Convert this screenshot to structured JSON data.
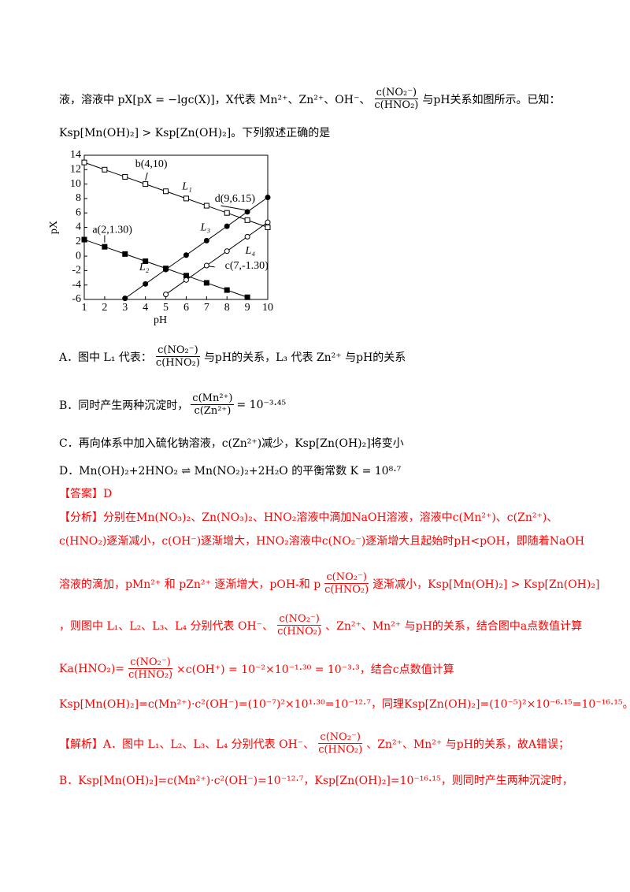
{
  "paragraphs": [
    {
      "color": "black",
      "parts": [
        "液，溶液中 pX[pX = −lgc(X)]，X代表 Mn²⁺、Zn²⁺、OH⁻、",
        {
          "num": "c(NO₂⁻)",
          "den": "c(HNO₂)"
        },
        "与pH关系如图所示。已知："
      ]
    },
    {
      "color": "black",
      "parts": [
        "Ksp[Mn(OH)₂] > Ksp[Zn(OH)₂]。下列叙述正确的是"
      ]
    },
    {
      "color": "black",
      "parts": [
        "A．图中 L₁ 代表：",
        {
          "num": "c(NO₂⁻)",
          "den": "c(HNO₂)"
        },
        "与pH的关系，L₃ 代表 Zn²⁺ 与pH的关系"
      ]
    },
    {
      "color": "black",
      "parts": [
        "B．同时产生两种沉淀时，",
        {
          "num": "c(Mn²⁺)",
          "den": "c(Zn²⁺)"
        },
        "= 10⁻³·⁴⁵"
      ]
    },
    {
      "color": "black",
      "parts": [
        "C．再向体系中加入硫化钠溶液，c(Zn²⁺)减少，Ksp[Zn(OH)₂]将变小"
      ]
    },
    {
      "color": "black",
      "parts": [
        "D．Mn(OH)₂+2HNO₂ ⇌ Mn(NO₂)₂+2H₂O 的平衡常数 K = 10⁸·⁷"
      ]
    },
    {
      "color": "red",
      "parts": [
        "【答案】D"
      ]
    },
    {
      "color": "red",
      "parts": [
        "【分析】分别在Mn(NO₃)₂、Zn(NO₃)₂、HNO₂溶液中滴加NaOH溶液，溶液中c(Mn²⁺)、c(Zn²⁺)、"
      ]
    },
    {
      "color": "red",
      "parts": [
        "c(HNO₂)逐渐减小，c(OH⁻)逐渐增大，HNO₂溶液中c(NO₂⁻)逐渐增大且起始时pH<pOH，即随着NaOH"
      ]
    },
    {
      "color": "red",
      "parts": [
        "溶液的滴加，pMn²⁺ 和 pZn²⁺ 逐渐增大，pOH-和 p",
        {
          "num": "c(NO₂⁻)",
          "den": "c(HNO₂)"
        },
        "逐渐减小，Ksp[Mn(OH)₂] > Ksp[Zn(OH)₂]"
      ]
    },
    {
      "color": "red",
      "parts": [
        "，则图中 L₁、L₂、L₃、L₄ 分别代表 OH⁻、",
        {
          "num": "c(NO₂⁻)",
          "den": "c(HNO₂)"
        },
        "、Zn²⁺、Mn²⁺ 与pH的关系，结合图中a点数值计算"
      ]
    },
    {
      "color": "red",
      "parts": [
        "Ka(HNO₂)=",
        {
          "num": "c(NO₂⁻)",
          "den": "c(HNO₂)"
        },
        "×c(OH⁺) = 10⁻²×10⁻¹·³⁰ = 10⁻³·³，结合c点数值计算"
      ]
    },
    {
      "color": "red",
      "parts": [
        "Ksp[Mn(OH)₂]=c(Mn²⁺)·c²(OH⁻)=(10⁻⁷)²×10¹·³⁰=10⁻¹²·⁷，同理Ksp[Zn(OH)₂]=(10⁻⁵)²×10⁻⁶·¹⁵=10⁻¹⁶·¹⁵。"
      ]
    },
    {
      "color": "red",
      "parts": [
        "【解析】A．图中 L₁、L₂、L₃、L₄ 分别代表 OH⁻、",
        {
          "num": "c(NO₂⁻)",
          "den": "c(HNO₂)"
        },
        "、Zn²⁺、Mn²⁺ 与pH的关系，故A错误；"
      ]
    },
    {
      "color": "red",
      "parts": [
        "B．Ksp[Mn(OH)₂]=c(Mn²⁺)·c²(OH⁻)=10⁻¹²·⁷，Ksp[Zn(OH)₂]=10⁻¹⁶·¹⁵，则同时产生两种沉淀时，"
      ]
    }
  ],
  "chart_data": {
    "type": "line",
    "x_label": "pH",
    "y_label": "pX",
    "x": [
      1,
      2,
      3,
      4,
      5,
      6,
      7,
      8,
      9,
      10
    ],
    "xlim": [
      1,
      10
    ],
    "xticks": [
      1,
      2,
      3,
      4,
      5,
      6,
      7,
      8,
      9,
      10
    ],
    "ylim": [
      -6,
      14
    ],
    "yticks": [
      -6,
      -4,
      -2,
      0,
      2,
      4,
      6,
      8,
      10,
      12,
      14
    ],
    "series": [
      {
        "name": "L₁",
        "color": "#000000",
        "marker": "square",
        "filled": false,
        "values": [
          13,
          12,
          11,
          10,
          9,
          8,
          7,
          6,
          5,
          4
        ]
      },
      {
        "name": "L₂",
        "color": "#000000",
        "marker": "square",
        "filled": true,
        "values": [
          2.3,
          1.3,
          0.3,
          -0.7,
          -1.7,
          -2.7,
          -3.7,
          -4.7,
          -5.7,
          null
        ]
      },
      {
        "name": "L₃",
        "color": "#000000",
        "marker": "circle",
        "filled": true,
        "values": [
          null,
          null,
          -5.85,
          -3.85,
          -1.85,
          0.15,
          2.15,
          4.15,
          6.15,
          8.15
        ]
      },
      {
        "name": "L₄",
        "color": "#000000",
        "marker": "circle",
        "filled": false,
        "values": [
          null,
          null,
          null,
          null,
          -5.3,
          -3.3,
          -1.3,
          0.7,
          2.7,
          4.7
        ]
      }
    ],
    "annotations": [
      "b(4,10)",
      "d(9,6.15)",
      "a(2,1.30)",
      "c(7,-1.30)"
    ]
  }
}
